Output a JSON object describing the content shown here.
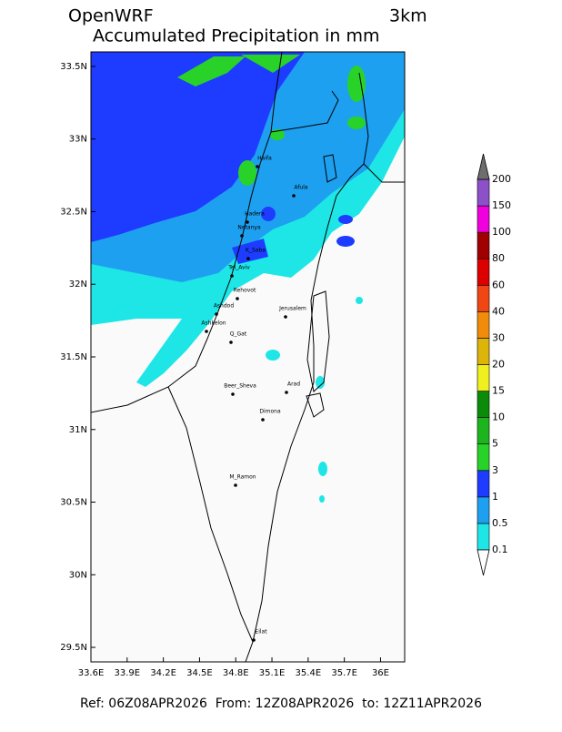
{
  "header": {
    "model": "OpenWRF",
    "resolution": "3km",
    "title": "Accumulated Precipitation in mm"
  },
  "map": {
    "xlim": [
      33.6,
      36.2
    ],
    "ylim": [
      29.4,
      33.6
    ],
    "xticks": [
      {
        "value": 33.6,
        "label": "33.6E"
      },
      {
        "value": 33.9,
        "label": "33.9E"
      },
      {
        "value": 34.2,
        "label": "34.2E"
      },
      {
        "value": 34.5,
        "label": "34.5E"
      },
      {
        "value": 34.8,
        "label": "34.8E"
      },
      {
        "value": 35.1,
        "label": "35.1E"
      },
      {
        "value": 35.4,
        "label": "35.4E"
      },
      {
        "value": 35.7,
        "label": "35.7E"
      },
      {
        "value": 36,
        "label": "36E"
      }
    ],
    "yticks": [
      {
        "value": 29.5,
        "label": "29.5N"
      },
      {
        "value": 30,
        "label": "30N"
      },
      {
        "value": 30.5,
        "label": "30.5N"
      },
      {
        "value": 31,
        "label": "31N"
      },
      {
        "value": 31.5,
        "label": "31.5N"
      },
      {
        "value": 32,
        "label": "32N"
      },
      {
        "value": 32.5,
        "label": "32.5N"
      },
      {
        "value": 33,
        "label": "33N"
      },
      {
        "value": 33.5,
        "label": "33.5N"
      }
    ],
    "cities": [
      "Eilat",
      "M_Ramon",
      "Dimona",
      "Beer_Sheva",
      "Arad",
      "Q_Gat",
      "Ashkelon",
      "Ashdod",
      "Jerusalem",
      "Rehovot",
      "Tel_Aviv",
      "K_Saba",
      "Netanya",
      "Hadera",
      "Afula",
      "Haifa"
    ]
  },
  "colorbar": {
    "levels": [
      0.1,
      0.5,
      1,
      3,
      5,
      10,
      15,
      20,
      30,
      40,
      60,
      80,
      100,
      150,
      200
    ],
    "colors": [
      "#1ee6e6",
      "#1ea0f0",
      "#1e3cff",
      "#28d228",
      "#1eb41e",
      "#0a8c0a",
      "#f0f01e",
      "#dcb40a",
      "#f08c0a",
      "#f04614",
      "#dc0000",
      "#a00000",
      "#f000dc",
      "#8c50c8"
    ],
    "under_color": "#ffffff",
    "over_color": "#6e6e6e"
  },
  "footer": "Ref: 06Z08APR2026  From: 12Z08APR2026  to: 12Z11APR2026"
}
